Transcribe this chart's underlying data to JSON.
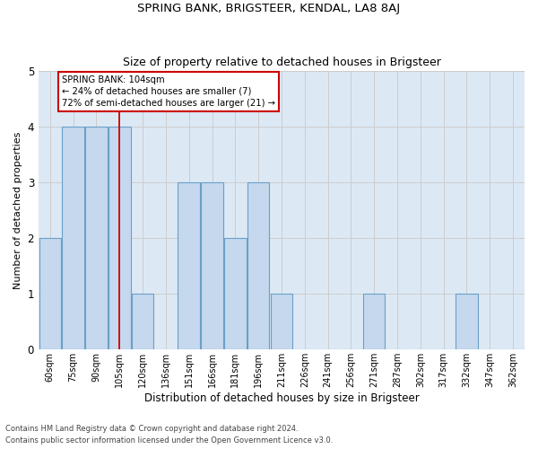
{
  "title": "SPRING BANK, BRIGSTEER, KENDAL, LA8 8AJ",
  "subtitle": "Size of property relative to detached houses in Brigsteer",
  "xlabel": "Distribution of detached houses by size in Brigsteer",
  "ylabel": "Number of detached properties",
  "categories": [
    "60sqm",
    "75sqm",
    "90sqm",
    "105sqm",
    "120sqm",
    "136sqm",
    "151sqm",
    "166sqm",
    "181sqm",
    "196sqm",
    "211sqm",
    "226sqm",
    "241sqm",
    "256sqm",
    "271sqm",
    "287sqm",
    "302sqm",
    "317sqm",
    "332sqm",
    "347sqm",
    "362sqm"
  ],
  "values": [
    2,
    4,
    4,
    4,
    1,
    0,
    3,
    3,
    2,
    3,
    1,
    0,
    0,
    0,
    1,
    0,
    0,
    0,
    1,
    0,
    0
  ],
  "bar_color": "#c5d8ed",
  "bar_edge_color": "#6aa0c7",
  "grid_color": "#cccccc",
  "background_color": "#dce9f5",
  "spring_bank_line_color": "#cc0000",
  "spring_bank_index": 3,
  "spring_bank_label": "SPRING BANK: 104sqm",
  "annotation_line1": "← 24% of detached houses are smaller (7)",
  "annotation_line2": "72% of semi-detached houses are larger (21) →",
  "ylim": [
    0,
    5
  ],
  "yticks": [
    0,
    1,
    2,
    3,
    4,
    5
  ],
  "footnote1": "Contains HM Land Registry data © Crown copyright and database right 2024.",
  "footnote2": "Contains public sector information licensed under the Open Government Licence v3.0."
}
